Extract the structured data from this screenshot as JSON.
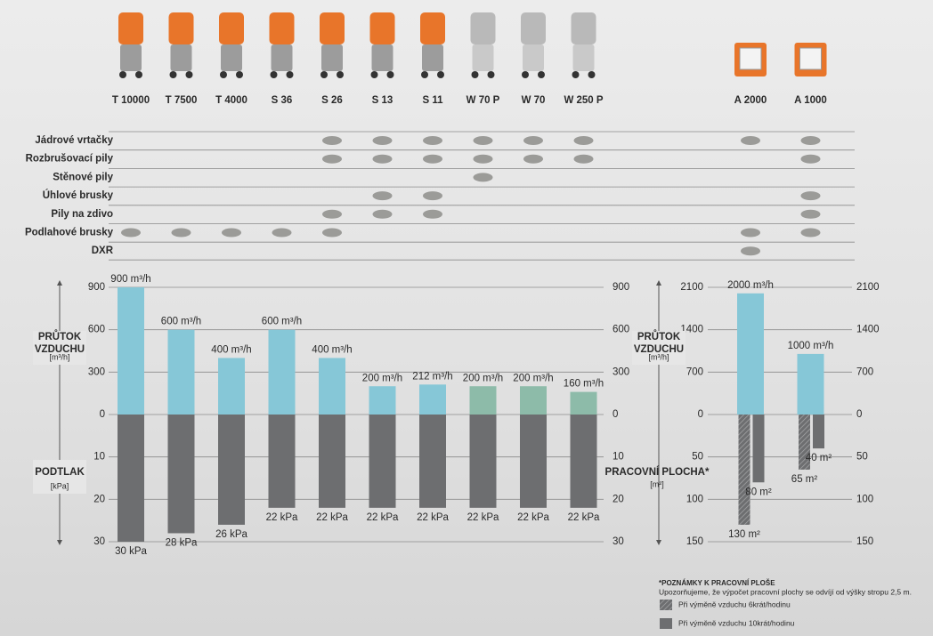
{
  "chart_data": [
    {
      "type": "bar",
      "y_label": "PRŮTOK VZDUCHU",
      "y_unit": "[m³/h]",
      "categories": [
        "T 10000",
        "T 7500",
        "T 4000",
        "S 36",
        "S 26",
        "S 13",
        "S 11",
        "W 70 P",
        "W 70",
        "W 250 P"
      ],
      "values": [
        900,
        600,
        400,
        600,
        400,
        200,
        212,
        200,
        200,
        160
      ],
      "value_labels": [
        "900 m³/h",
        "600 m³/h",
        "400 m³/h",
        "600 m³/h",
        "400 m³/h",
        "200 m³/h",
        "212 m³/h",
        "200 m³/h",
        "200 m³/h",
        "160 m³/h"
      ],
      "colors": [
        "#86c7d7",
        "#86c7d7",
        "#86c7d7",
        "#86c7d7",
        "#86c7d7",
        "#86c7d7",
        "#86c7d7",
        "#8dbba9",
        "#8dbba9",
        "#8dbba9"
      ],
      "ylim": [
        0,
        900
      ],
      "yticks": [
        0,
        300,
        600,
        900
      ],
      "grid": true
    },
    {
      "type": "bar",
      "direction": "down",
      "y_label": "PODTLAK",
      "y_unit": "[kPa]",
      "values": [
        30,
        28,
        26,
        22,
        22,
        22,
        22,
        22,
        22,
        22
      ],
      "value_labels": [
        "30 kPa",
        "28 kPa",
        "26 kPa",
        "22 kPa",
        "22 kPa",
        "22 kPa",
        "22 kPa",
        "22 kPa",
        "22 kPa",
        "22 kPa"
      ],
      "color": "#6d6e70",
      "ylim": [
        0,
        30
      ],
      "yticks": [
        10,
        20,
        30
      ],
      "grid": true
    },
    {
      "type": "bar",
      "y_label": "PRŮTOK VZDUCHU",
      "y_unit": "[m³/h]",
      "categories": [
        "A 2000",
        "A 1000"
      ],
      "values": [
        2000,
        1000
      ],
      "value_labels": [
        "2000 m³/h",
        "1000 m³/h"
      ],
      "color": "#86c7d7",
      "ylim": [
        0,
        2100
      ],
      "yticks": [
        0,
        700,
        1400,
        2100
      ],
      "grid": true
    },
    {
      "type": "bar",
      "direction": "down",
      "y_label": "PRACOVNÍ PLOCHA*",
      "y_unit": "[m²]",
      "series": [
        {
          "name": "Při výměně vzduchu 6krát/hodinu",
          "color": "#6d6e70",
          "pattern": "hatch",
          "values": [
            130,
            65
          ],
          "value_labels": [
            "130 m²",
            "65 m²"
          ]
        },
        {
          "name": "Při výměně vzduchu 10krát/hodinu",
          "color": "#6d6e70",
          "pattern": "solid",
          "values": [
            80,
            40
          ],
          "value_labels": [
            "80 m²",
            "40 m²"
          ]
        }
      ],
      "ylim": [
        0,
        150
      ],
      "yticks": [
        50,
        100,
        150
      ],
      "grid": true
    }
  ],
  "tools": [
    {
      "name": "Jádrové vrtačky",
      "used": [
        false,
        false,
        false,
        false,
        true,
        true,
        true,
        true,
        true,
        true,
        true,
        true
      ]
    },
    {
      "name": "Rozbrušovací pily",
      "used": [
        false,
        false,
        false,
        false,
        true,
        true,
        true,
        true,
        true,
        true,
        false,
        true
      ]
    },
    {
      "name": "Stěnové pily",
      "used": [
        false,
        false,
        false,
        false,
        false,
        false,
        false,
        true,
        false,
        false,
        false,
        false
      ]
    },
    {
      "name": "Úhlové brusky",
      "used": [
        false,
        false,
        false,
        false,
        false,
        true,
        true,
        false,
        false,
        false,
        false,
        true
      ]
    },
    {
      "name": "Pily na zdivo",
      "used": [
        false,
        false,
        false,
        false,
        true,
        true,
        true,
        false,
        false,
        false,
        false,
        true
      ]
    },
    {
      "name": "Podlahové brusky",
      "used": [
        true,
        true,
        true,
        true,
        true,
        false,
        false,
        false,
        false,
        false,
        true,
        true
      ]
    },
    {
      "name": "DXR",
      "used": [
        false,
        false,
        false,
        false,
        false,
        false,
        false,
        false,
        false,
        false,
        true,
        false
      ]
    }
  ],
  "note": {
    "title": "*POZNÁMKY K PRACOVNÍ PLOŠE",
    "text": "Upozorňujeme, že výpočet pracovní plochy se odvíjí od výšky stropu 2,5 m."
  }
}
